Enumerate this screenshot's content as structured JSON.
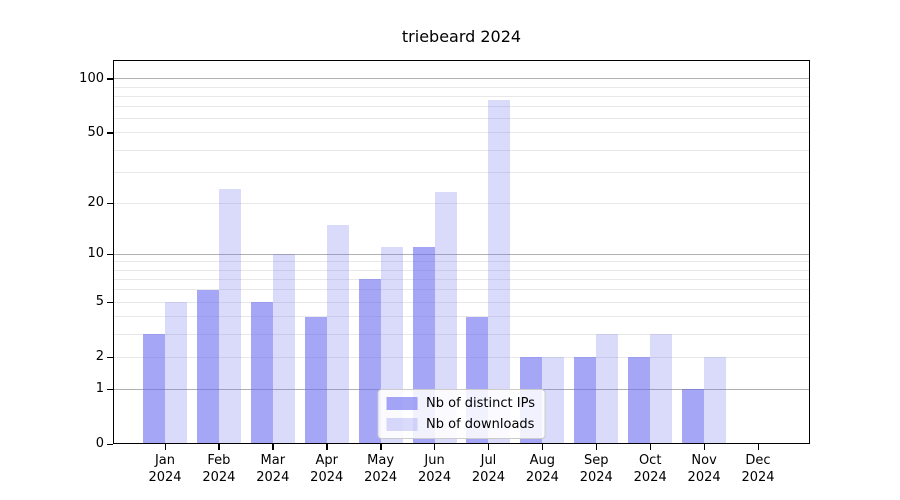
{
  "title": "triebeard 2024",
  "chart_data": {
    "type": "bar",
    "title": "triebeard 2024",
    "categories": [
      "Jan 2024",
      "Feb 2024",
      "Mar 2024",
      "Apr 2024",
      "May 2024",
      "Jun 2024",
      "Jul 2024",
      "Aug 2024",
      "Sep 2024",
      "Oct 2024",
      "Nov 2024",
      "Dec 2024"
    ],
    "series": [
      {
        "name": "Nb of distinct IPs",
        "color": "rgba(106,106,240,0.6)",
        "values": [
          3,
          6,
          5,
          4,
          7,
          11,
          4,
          2,
          2,
          2,
          1,
          0
        ]
      },
      {
        "name": "Nb of downloads",
        "color": "rgba(106,106,240,0.25)",
        "values": [
          5,
          24,
          10,
          15,
          11,
          23,
          76,
          2,
          3,
          3,
          2,
          0
        ]
      }
    ],
    "y_axis": {
      "scale": "log1p",
      "ticks": [
        0,
        1,
        2,
        5,
        10,
        20,
        50,
        100
      ],
      "tick_labels": [
        "0",
        "1",
        "2",
        "5",
        "10",
        "20",
        "50",
        "100"
      ],
      "max": 127,
      "major_gridlines": [
        1,
        10,
        100
      ],
      "minor_gridlines": [
        2,
        3,
        4,
        5,
        6,
        7,
        8,
        9,
        20,
        30,
        40,
        50,
        60,
        70,
        80,
        90
      ]
    },
    "xlabel": "",
    "ylabel": "",
    "grid": true,
    "legend": {
      "position": "lower center",
      "entries": [
        "Nb of distinct IPs",
        "Nb of downloads"
      ]
    },
    "colors": {
      "bar_dark": "rgba(106,106,240,0.6)",
      "bar_light": "rgba(106,106,240,0.25)",
      "major_grid": "#b0b0b0",
      "minor_grid": "#e8e8e8",
      "spine": "#000000",
      "text": "#000000",
      "background": "#ffffff"
    }
  }
}
